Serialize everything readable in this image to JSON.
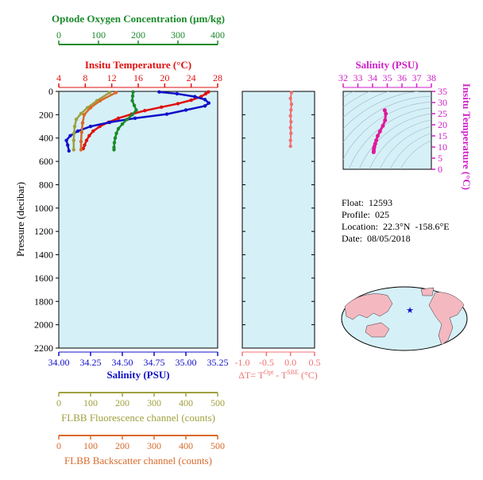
{
  "chart_data": {
    "type": "line",
    "pressure_axis": {
      "label": "Pressure (decibar)",
      "ticks": [
        0,
        200,
        400,
        600,
        800,
        1000,
        1200,
        1400,
        1600,
        1800,
        2000,
        2200
      ],
      "range": [
        0,
        2200
      ],
      "inverted": true
    },
    "axes": {
      "oxygen": {
        "label": "Optode Oxygen Concentration (µm/kg)",
        "ticks": [
          "0",
          "100",
          "200",
          "300",
          "400"
        ],
        "range": [
          0,
          400
        ],
        "color": "#1a8a2a"
      },
      "temperature": {
        "label": "Insitu Temperature (°C)",
        "ticks": [
          "4",
          "8",
          "12",
          "16",
          "20",
          "24",
          "28"
        ],
        "range": [
          4,
          28
        ],
        "color": "#e01010"
      },
      "salinity": {
        "label": "Salinity (PSU)",
        "ticks": [
          "34.00",
          "34.25",
          "34.50",
          "34.75",
          "35.00",
          "35.25"
        ],
        "range": [
          34.0,
          35.25
        ],
        "color": "#1010c8"
      },
      "fluorescence": {
        "label": "FLBB Fluorescence channel (counts)",
        "ticks": [
          "0",
          "100",
          "200",
          "300",
          "400",
          "500"
        ],
        "range": [
          0,
          500
        ],
        "color": "#a0a040"
      },
      "backscatter": {
        "label": "FLBB Backscatter channel (counts)",
        "ticks": [
          "0",
          "100",
          "200",
          "300",
          "400",
          "500"
        ],
        "range": [
          0,
          500
        ],
        "color": "#d86a2a"
      },
      "delta_t": {
        "label": "ΔT= T",
        "sup1": "Opt",
        "mid": " - T",
        "sup2": "SBE",
        "tail": " (°C)",
        "ticks": [
          "-1.0",
          "-0.5",
          "0.0",
          "0.5"
        ],
        "range": [
          -1.0,
          0.5
        ],
        "color": "#f07070"
      }
    },
    "series": [
      {
        "name": "temperature",
        "color": "#e01010",
        "x": [
          26.6,
          26.2,
          25.5,
          24.0,
          22.0,
          19.5,
          17.0,
          15.0,
          13.0,
          11.5,
          10.2,
          9.2,
          8.6,
          8.2,
          7.9,
          7.7
        ],
        "y": [
          5,
          20,
          45,
          75,
          105,
          135,
          165,
          195,
          230,
          265,
          300,
          340,
          380,
          420,
          460,
          490
        ]
      },
      {
        "name": "salinity",
        "color": "#1010c8",
        "x": [
          34.79,
          34.93,
          35.07,
          35.15,
          35.18,
          35.15,
          35.0,
          34.85,
          34.6,
          34.4,
          34.25,
          34.15,
          34.09,
          34.06,
          34.07,
          34.08
        ],
        "y": [
          5,
          20,
          45,
          70,
          100,
          125,
          160,
          195,
          230,
          265,
          300,
          340,
          380,
          420,
          460,
          510
        ]
      },
      {
        "name": "oxygen",
        "color": "#1a8a2a",
        "x": [
          187,
          186,
          185,
          190,
          195,
          185,
          172,
          160,
          150,
          145,
          142,
          140,
          139,
          139
        ],
        "y": [
          5,
          40,
          80,
          120,
          160,
          200,
          240,
          280,
          320,
          360,
          400,
          440,
          480,
          500
        ]
      },
      {
        "name": "fluorescence",
        "color": "#a0a040",
        "x": [
          160,
          120,
          90,
          70,
          55,
          50,
          48,
          47,
          47
        ],
        "y": [
          10,
          80,
          140,
          190,
          240,
          300,
          360,
          420,
          500
        ]
      },
      {
        "name": "backscatter",
        "color": "#d86a2a",
        "x": [
          180,
          130,
          100,
          80,
          75,
          72,
          70,
          70
        ],
        "y": [
          10,
          80,
          140,
          200,
          270,
          350,
          430,
          500
        ]
      },
      {
        "name": "delta_t",
        "color": "#f07070",
        "x": [
          0.02,
          0.0,
          0.02,
          0.01,
          0.0,
          0.01,
          0.0,
          0.01,
          0.0,
          0.0
        ],
        "y": [
          10,
          60,
          110,
          160,
          210,
          260,
          310,
          360,
          420,
          470
        ]
      }
    ],
    "ts_inset": {
      "salinity_axis": {
        "label": "Salinity (PSU)",
        "ticks": [
          "32",
          "33",
          "34",
          "35",
          "36",
          "37",
          "38"
        ],
        "range": [
          32,
          38
        ],
        "color": "#d020c8"
      },
      "temp_axis": {
        "label": "Insitu Temperature (°C)",
        "ticks": [
          "0",
          "5",
          "10",
          "15",
          "20",
          "25",
          "30",
          "35"
        ],
        "range": [
          0,
          35
        ],
        "color": "#d020c8"
      },
      "series": {
        "name": "ts",
        "color": "#e0189a",
        "salinity": [
          34.83,
          34.9,
          34.85,
          34.7,
          34.5,
          34.35,
          34.25,
          34.18,
          34.12,
          34.09,
          34.08,
          34.07
        ],
        "temperature": [
          26.5,
          25.0,
          22.0,
          19.5,
          17.0,
          15.0,
          13.0,
          11.5,
          10.2,
          9.2,
          8.2,
          7.7
        ]
      }
    }
  },
  "float_info": {
    "float": "Float:  12593",
    "profile": "Profile:  025",
    "location_label": "Location:  22.3",
    "location_lat_unit": "°N  -158.6",
    "location_lon_unit": "°E",
    "date": "Date:  08/05/2018"
  },
  "colors": {
    "panel_bg": "#d6f0f8",
    "frame": "#000000"
  }
}
